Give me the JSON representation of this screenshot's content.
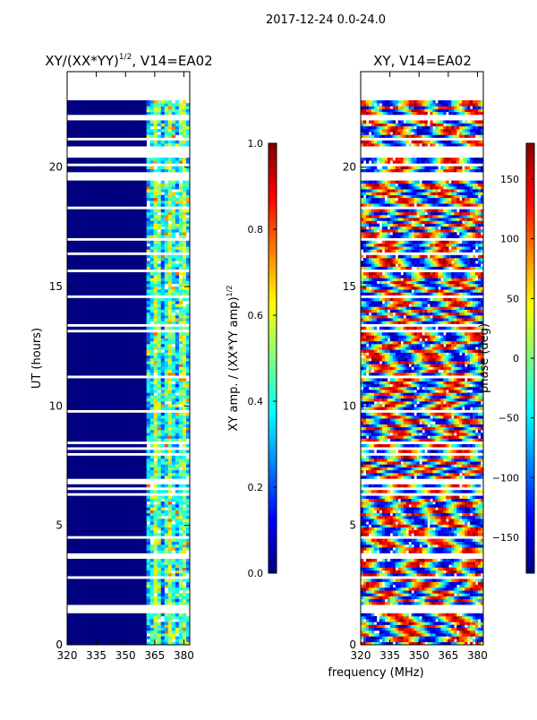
{
  "figure": {
    "suptitle": "2017-12-24 0.0-24.0",
    "xlabel": "frequency (MHz)"
  },
  "chart_data": [
    {
      "type": "heatmap",
      "title_main": "XY/(XX*YY)",
      "title_sup": "1/2",
      "title_tail": ", V14=EA02",
      "xlabel": "",
      "ylabel": "UT (hours)",
      "xlim": [
        320,
        383
      ],
      "ylim": [
        0,
        24
      ],
      "xticks": [
        "320",
        "335",
        "350",
        "365",
        "380"
      ],
      "yticks": [
        "0",
        "5",
        "10",
        "15",
        "20"
      ],
      "colorbar": {
        "label_main": "XY amp. / (XX*YY amp)",
        "label_sup": "1/2",
        "range": [
          0.0,
          1.0
        ],
        "ticks": [
          "0.0",
          "0.2",
          "0.4",
          "0.6",
          "0.8",
          "1.0"
        ],
        "colormap": "jet"
      },
      "data_coverage_hours": [
        0,
        22.7
      ],
      "active_band_mhz": [
        360,
        383
      ],
      "description_values": "amplitude near 0 below 360 MHz, 0.2-0.7 in 360-383 MHz"
    },
    {
      "type": "heatmap",
      "title_main": "XY, V14=EA02",
      "xlabel": "",
      "ylabel": "",
      "xlim": [
        320,
        383
      ],
      "ylim": [
        0,
        24
      ],
      "xticks": [
        "320",
        "335",
        "350",
        "365",
        "380"
      ],
      "yticks": [
        "0",
        "5",
        "10",
        "15",
        "20"
      ],
      "colorbar": {
        "label_main": "phase (deg)",
        "range": [
          -180,
          180
        ],
        "ticks": [
          "−150",
          "−100",
          "−50",
          "0",
          "50",
          "100",
          "150"
        ],
        "tick_values": [
          -150,
          -100,
          -50,
          0,
          50,
          100,
          150
        ],
        "colormap": "jet"
      },
      "data_coverage_hours": [
        0,
        22.7
      ]
    }
  ]
}
